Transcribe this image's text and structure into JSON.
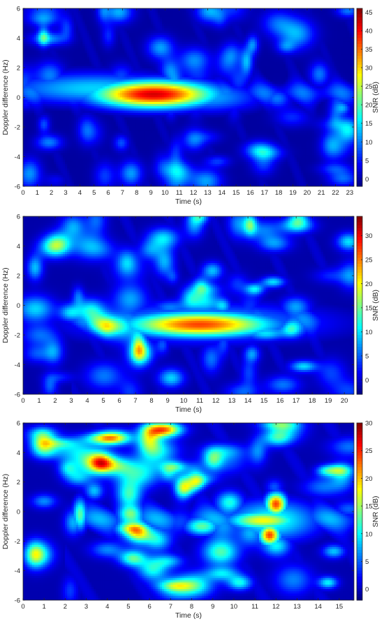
{
  "chart_data": [
    {
      "type": "heatmap",
      "title": "",
      "xlabel": "Time (s)",
      "ylabel": "Doppler difference (Hz)",
      "colorbar_label": "SNR (dB)",
      "colormap": "jet",
      "xlim": [
        0,
        23.3
      ],
      "ylim": [
        -6,
        6
      ],
      "clim": [
        -2,
        46
      ],
      "xticks": [
        "0",
        "1",
        "2",
        "3",
        "4",
        "5",
        "6",
        "7",
        "8",
        "9",
        "10",
        "11",
        "12",
        "13",
        "14",
        "15",
        "16",
        "17",
        "18",
        "19",
        "20",
        "21",
        "22",
        "23"
      ],
      "yticks": [
        "-6",
        "-4",
        "-2",
        "0",
        "2",
        "4",
        "6"
      ],
      "cticks": [
        "0",
        "5",
        "10",
        "15",
        "20",
        "25",
        "30",
        "35",
        "40",
        "45"
      ],
      "features": [
        {
          "kind": "ellipse",
          "t": 9.2,
          "f": 0.2,
          "st": 3.0,
          "sf": 0.65,
          "amp": 44
        },
        {
          "kind": "ellipse",
          "t": 5.0,
          "f": 0.6,
          "st": 4.5,
          "sf": 0.75,
          "amp": 16
        },
        {
          "kind": "ellipse",
          "t": 13.0,
          "f": 0.0,
          "st": 2.6,
          "sf": 0.7,
          "amp": 14
        },
        {
          "kind": "band",
          "f": 0.3,
          "sf": 0.55,
          "t0": 0,
          "t1": 23.3,
          "amp": 9
        }
      ]
    },
    {
      "type": "heatmap",
      "title": "",
      "xlabel": "Time (s)",
      "ylabel": "Doppler difference (Hz)",
      "colorbar_label": "SNR (dB)",
      "colormap": "jet",
      "xlim": [
        0,
        20.6
      ],
      "ylim": [
        -6,
        6
      ],
      "clim": [
        -3,
        34
      ],
      "xticks": [
        "0",
        "1",
        "2",
        "3",
        "4",
        "5",
        "6",
        "7",
        "8",
        "9",
        "10",
        "11",
        "12",
        "13",
        "14",
        "15",
        "16",
        "17",
        "18",
        "19",
        "20"
      ],
      "yticks": [
        "-6",
        "-4",
        "-2",
        "0",
        "2",
        "4",
        "6"
      ],
      "cticks": [
        "0",
        "5",
        "10",
        "15",
        "20",
        "25",
        "30"
      ],
      "features": [
        {
          "kind": "ellipse",
          "t": 11.0,
          "f": -1.3,
          "st": 3.2,
          "sf": 0.6,
          "amp": 30
        },
        {
          "kind": "ellipse",
          "t": 11.0,
          "f": -1.2,
          "st": 5.5,
          "sf": 0.95,
          "amp": 12
        },
        {
          "kind": "band",
          "f": -1.0,
          "sf": 0.6,
          "t0": 3,
          "t1": 19,
          "amp": 7
        }
      ]
    },
    {
      "type": "heatmap",
      "title": "",
      "xlabel": "Time (s)",
      "ylabel": "Doppler difference (Hz)",
      "colorbar_label": "SNR (dB)",
      "colormap": "jet",
      "xlim": [
        0,
        15.7
      ],
      "ylim": [
        -6,
        6
      ],
      "clim": [
        -2,
        30
      ],
      "xticks": [
        "0",
        "1",
        "2",
        "3",
        "4",
        "5",
        "6",
        "7",
        "8",
        "9",
        "10",
        "11",
        "12",
        "13",
        "14",
        "15"
      ],
      "yticks": [
        "-6",
        "-4",
        "-2",
        "0",
        "2",
        "4",
        "6"
      ],
      "cticks": [
        "0",
        "5",
        "10",
        "15",
        "20",
        "25",
        "30"
      ],
      "features": [
        {
          "kind": "ellipse",
          "t": 12.0,
          "f": 0.5,
          "st": 0.35,
          "sf": 0.55,
          "amp": 26
        },
        {
          "kind": "ellipse",
          "t": 11.7,
          "f": -1.6,
          "st": 0.35,
          "sf": 0.5,
          "amp": 26
        },
        {
          "kind": "ellipse",
          "t": 11.4,
          "f": -0.6,
          "st": 1.2,
          "sf": 0.45,
          "amp": 20
        },
        {
          "kind": "ellipse",
          "t": 11.8,
          "f": -0.6,
          "st": 1.6,
          "sf": 1.0,
          "amp": 13
        },
        {
          "kind": "ellipse",
          "t": 8.5,
          "f": -1.0,
          "st": 0.6,
          "sf": 0.45,
          "amp": 15
        },
        {
          "kind": "ellipse",
          "t": 2.7,
          "f": -0.2,
          "st": 0.25,
          "sf": 0.8,
          "amp": 15
        },
        {
          "kind": "band",
          "f": -0.5,
          "sf": 0.6,
          "t0": 2,
          "t1": 15.7,
          "amp": 7
        }
      ]
    }
  ]
}
